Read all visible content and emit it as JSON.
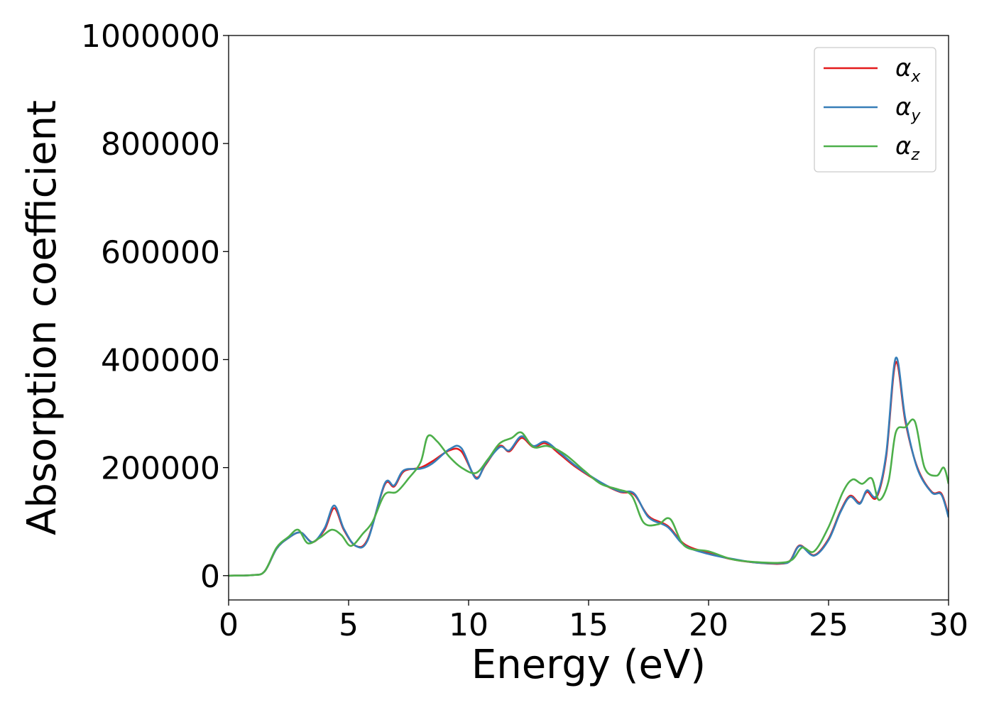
{
  "chart_data": {
    "type": "line",
    "xlabel": "Energy (eV)",
    "ylabel": "Absorption coefficient",
    "xlim": [
      0,
      30
    ],
    "ylim": [
      -45000,
      1000000
    ],
    "xticks": [
      0,
      5,
      10,
      15,
      20,
      25,
      30
    ],
    "yticks": [
      0,
      200000,
      400000,
      600000,
      800000,
      1000000
    ],
    "grid": false,
    "legend_position": "top-right",
    "series": [
      {
        "name": "αx",
        "symbol": "α",
        "subscript": "x",
        "color": "#e41a1c",
        "x": [
          0,
          1.0,
          1.5,
          2.0,
          2.5,
          3.0,
          3.5,
          4.0,
          4.4,
          4.8,
          5.3,
          5.8,
          6.5,
          6.9,
          7.3,
          8.0,
          8.5,
          9.2,
          9.7,
          10.3,
          10.7,
          11.3,
          11.7,
          12.2,
          12.7,
          13.2,
          13.8,
          14.5,
          15.5,
          16.3,
          16.9,
          17.5,
          18.3,
          19.0,
          20.0,
          21.0,
          22.0,
          23.0,
          23.4,
          23.8,
          24.4,
          25.0,
          25.5,
          25.9,
          26.3,
          26.6,
          27.0,
          27.4,
          27.8,
          28.2,
          28.7,
          29.3,
          29.7,
          30.0
        ],
        "y": [
          0,
          1000,
          8000,
          50000,
          70000,
          80000,
          62000,
          85000,
          125000,
          85000,
          55000,
          68000,
          168000,
          165000,
          193000,
          200000,
          212000,
          232000,
          230000,
          182000,
          205000,
          240000,
          230000,
          255000,
          238000,
          245000,
          225000,
          200000,
          172000,
          155000,
          150000,
          110000,
          92000,
          58000,
          42000,
          30000,
          24000,
          22000,
          28000,
          56000,
          38000,
          68000,
          120000,
          148000,
          135000,
          155000,
          145000,
          220000,
          395000,
          285000,
          200000,
          155000,
          152000,
          112000
        ]
      },
      {
        "name": "αy",
        "symbol": "α",
        "subscript": "y",
        "color": "#377eb8",
        "x": [
          0,
          1.0,
          1.5,
          2.0,
          2.5,
          3.0,
          3.5,
          4.0,
          4.4,
          4.8,
          5.3,
          5.8,
          6.5,
          6.9,
          7.3,
          8.0,
          8.5,
          9.2,
          9.7,
          10.3,
          10.7,
          11.3,
          11.7,
          12.2,
          12.7,
          13.2,
          13.8,
          14.5,
          15.5,
          16.3,
          16.9,
          17.5,
          18.3,
          19.0,
          20.0,
          21.0,
          22.0,
          23.0,
          23.4,
          23.8,
          24.4,
          25.0,
          25.5,
          25.9,
          26.3,
          26.6,
          27.0,
          27.4,
          27.8,
          28.2,
          28.7,
          29.3,
          29.7,
          30.0
        ],
        "y": [
          0,
          1000,
          8000,
          50000,
          70000,
          80000,
          62000,
          88000,
          130000,
          87000,
          55000,
          66000,
          170000,
          167000,
          195000,
          198000,
          208000,
          234000,
          236000,
          180000,
          207000,
          238000,
          232000,
          258000,
          240000,
          248000,
          228000,
          202000,
          173000,
          156000,
          152000,
          108000,
          90000,
          56000,
          40000,
          31000,
          24000,
          23000,
          27000,
          55000,
          37000,
          66000,
          118000,
          146000,
          133000,
          158000,
          148000,
          225000,
          403000,
          290000,
          198000,
          154000,
          150000,
          108000
        ]
      },
      {
        "name": "αz",
        "symbol": "α",
        "subscript": "z",
        "color": "#4daf4a",
        "x": [
          0,
          1.0,
          1.5,
          2.0,
          2.5,
          2.9,
          3.3,
          3.8,
          4.3,
          4.7,
          5.1,
          5.6,
          6.0,
          6.5,
          7.0,
          7.5,
          8.0,
          8.3,
          8.7,
          9.2,
          9.7,
          10.3,
          10.8,
          11.3,
          11.8,
          12.2,
          12.7,
          13.3,
          14.0,
          14.8,
          15.5,
          16.2,
          16.8,
          17.3,
          17.9,
          18.4,
          19.0,
          20.0,
          21.0,
          22.0,
          23.0,
          23.5,
          23.9,
          24.4,
          25.0,
          25.6,
          26.0,
          26.4,
          26.8,
          27.1,
          27.5,
          27.8,
          28.2,
          28.6,
          29.0,
          29.5,
          29.8,
          30.0
        ],
        "y": [
          0,
          1000,
          8000,
          52000,
          72000,
          85000,
          60000,
          70000,
          85000,
          75000,
          55000,
          78000,
          100000,
          150000,
          155000,
          180000,
          210000,
          258000,
          248000,
          220000,
          200000,
          190000,
          215000,
          245000,
          255000,
          265000,
          238000,
          240000,
          225000,
          195000,
          170000,
          160000,
          148000,
          98000,
          95000,
          105000,
          55000,
          45000,
          30000,
          25000,
          24000,
          30000,
          52000,
          45000,
          90000,
          155000,
          178000,
          170000,
          180000,
          140000,
          175000,
          265000,
          275000,
          285000,
          200000,
          185000,
          200000,
          170000
        ]
      }
    ]
  }
}
